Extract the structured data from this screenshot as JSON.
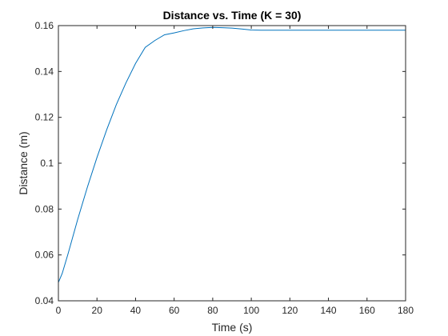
{
  "chart_data": {
    "type": "line",
    "title": "Distance vs. Time (K = 30)",
    "xlabel": "Time (s)",
    "ylabel": "Distance (m)",
    "xlim": [
      0,
      180
    ],
    "ylim": [
      0.04,
      0.16
    ],
    "xticks": [
      0,
      20,
      40,
      60,
      80,
      100,
      120,
      140,
      160,
      180
    ],
    "yticks": [
      0.04,
      0.06,
      0.08,
      0.1,
      0.12,
      0.14,
      0.16
    ],
    "xtick_labels": [
      "0",
      "20",
      "40",
      "60",
      "80",
      "100",
      "120",
      "140",
      "160",
      "180"
    ],
    "ytick_labels": [
      "0.04",
      "0.06",
      "0.08",
      "0.1",
      "0.12",
      "0.14",
      "0.16"
    ],
    "grid": false,
    "series": [
      {
        "color": "#0072BD",
        "x": [
          0,
          2,
          5,
          10,
          15,
          20,
          25,
          30,
          35,
          40,
          45,
          50,
          55,
          60,
          65,
          70,
          75,
          80,
          85,
          90,
          95,
          100,
          105,
          110,
          120,
          140,
          160,
          180
        ],
        "y": [
          0.048,
          0.052,
          0.0605,
          0.0755,
          0.0895,
          0.1025,
          0.1145,
          0.1255,
          0.135,
          0.1435,
          0.1505,
          0.1535,
          0.156,
          0.1568,
          0.1578,
          0.1586,
          0.159,
          0.1592,
          0.1591,
          0.1589,
          0.1585,
          0.1581,
          0.158,
          0.158,
          0.158,
          0.158,
          0.158,
          0.158
        ]
      }
    ]
  }
}
